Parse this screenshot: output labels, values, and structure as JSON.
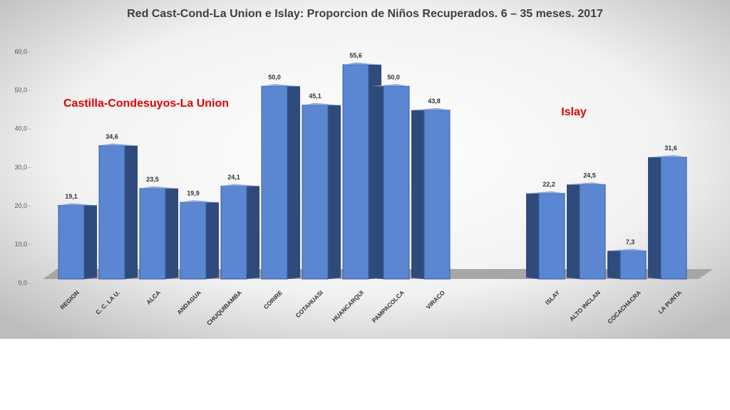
{
  "chart_data": {
    "type": "bar",
    "title": "Red Cast-Cond-La Union e Islay: Proporcion de Niños Recuperados. 6 – 35 meses. 2017",
    "annotations": [
      "Castilla-Condesuyos-La Union",
      "Islay"
    ],
    "categories": [
      "REGION",
      "C. C. LA U.",
      "ALCA",
      "ANDAGUA",
      "CHUQUIBAMBA",
      "CORIRE",
      "COTAHUASI",
      "HUANCARQUI",
      "PAMPACOLCA",
      "VIRACO",
      null,
      null,
      "ISLAY",
      "ALTO INCLAN",
      "COCACHACRA",
      "LA PUNTA"
    ],
    "values": [
      19.1,
      34.6,
      23.5,
      19.9,
      24.1,
      50.0,
      45.1,
      55.6,
      50.0,
      43.8,
      null,
      null,
      22.2,
      24.5,
      7.3,
      31.6
    ],
    "value_labels": [
      "19,1",
      "34,6",
      "23,5",
      "19,9",
      "24,1",
      "50,0",
      "45,1",
      "55,6",
      "50,0",
      "43,8",
      null,
      null,
      "22,2",
      "24,5",
      "7,3",
      "31,6"
    ],
    "color": "#5b86d1",
    "ylim": [
      0,
      60
    ],
    "yticks": [
      {
        "value": 0,
        "label": "0,0"
      },
      {
        "value": 10,
        "label": "10,0"
      },
      {
        "value": 20,
        "label": "20,0"
      },
      {
        "value": 30,
        "label": "30,0"
      },
      {
        "value": 40,
        "label": "40,0"
      },
      {
        "value": 50,
        "label": "50,0"
      },
      {
        "value": 60,
        "label": "60,0"
      }
    ],
    "grid": false
  }
}
